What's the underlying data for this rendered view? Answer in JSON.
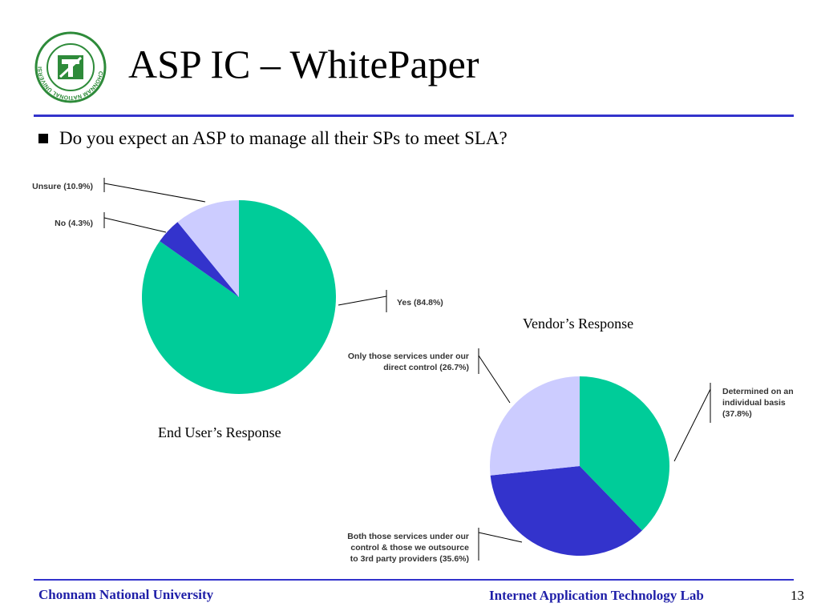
{
  "slide": {
    "title": "ASP IC – WhitePaper",
    "bullet": "Do you expect an ASP to manage all their SPs to meet SLA?",
    "footer_left": "Chonnam National University",
    "footer_right": "Internet Application Technology Lab",
    "page_number": "13"
  },
  "logo": {
    "ring_text": "CHONNAM NATIONAL UNIVERSITY",
    "color": "#2e8b3a"
  },
  "colors": {
    "accent_rule": "#3333cc",
    "footer_text": "#1f1fa8"
  },
  "chart_data": [
    {
      "type": "pie",
      "caption": "End User’s Response",
      "slices": [
        {
          "label": "Yes (84.8%)",
          "value": 84.8,
          "color": "#00cc99"
        },
        {
          "label": "No (4.3%)",
          "value": 4.3,
          "color": "#3333cc"
        },
        {
          "label": "Unsure (10.9%)",
          "value": 10.9,
          "color": "#ccccff"
        }
      ]
    },
    {
      "type": "pie",
      "caption": "Vendor’s Response",
      "slices": [
        {
          "label": "Determined on an individual basis (37.8%)",
          "label_lines": [
            "Determined on an",
            "individual basis",
            "(37.8%)"
          ],
          "value": 37.8,
          "color": "#00cc99"
        },
        {
          "label": "Both those services under our control & those we outsource to 3rd party providers (35.6%)",
          "label_lines": [
            "Both those services under our",
            "control & those we outsource",
            "to 3rd party providers  (35.6%)"
          ],
          "value": 35.6,
          "color": "#3333cc"
        },
        {
          "label": "Only those services under our direct control (26.7%)",
          "label_lines": [
            "Only those services under our",
            "direct control  (26.7%)"
          ],
          "value": 26.7,
          "color": "#ccccff"
        }
      ]
    }
  ]
}
